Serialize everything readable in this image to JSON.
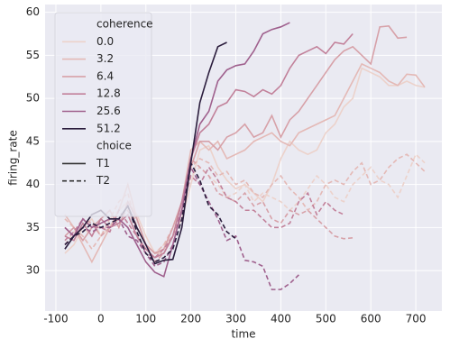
{
  "chart_data": {
    "type": "line",
    "xlabel": "time",
    "ylabel": "firing_rate",
    "xlim": [
      -124,
      758
    ],
    "ylim": [
      25.3,
      60.9
    ],
    "xticks": [
      -100,
      0,
      100,
      200,
      300,
      400,
      500,
      600,
      700
    ],
    "yticks": [
      30,
      35,
      40,
      45,
      50,
      55,
      60
    ],
    "grid": true,
    "legend_position": "upper-left",
    "legend": {
      "hue_title": "coherence",
      "hue_levels": [
        "0.0",
        "3.2",
        "6.4",
        "12.8",
        "25.6",
        "51.2"
      ],
      "hue_colors": [
        "#ecd2cb",
        "#e4b9b6",
        "#d7a1a8",
        "#c2819a",
        "#9f608d",
        "#2b1d3d"
      ],
      "style_title": "choice",
      "style_levels": [
        "T1",
        "T2"
      ],
      "style_dash": [
        "none",
        "5,3"
      ]
    },
    "x": [
      -80,
      -60,
      -40,
      -20,
      0,
      20,
      40,
      60,
      80,
      100,
      120,
      140,
      160,
      180,
      200,
      220,
      240,
      260,
      280,
      300,
      320,
      340,
      360,
      380,
      400,
      420,
      440,
      460,
      480,
      500,
      520,
      540,
      560,
      580,
      600,
      620,
      640,
      660,
      680,
      700,
      720
    ],
    "series": [
      {
        "hue": "0.0",
        "style": "T1",
        "values": [
          32,
          33,
          35,
          36,
          34,
          35,
          37,
          38,
          36.5,
          34,
          32,
          32.5,
          34,
          36,
          40,
          44,
          44.5,
          42,
          40.5,
          39.5,
          40,
          39,
          38,
          40,
          43,
          45,
          44,
          43.5,
          44,
          46,
          47,
          49,
          50,
          53.5,
          53,
          52.5,
          51.5,
          51.5,
          52,
          51.5,
          51.3
        ]
      },
      {
        "hue": "0.0",
        "style": "T2",
        "values": [
          33,
          34.5,
          35,
          34,
          35.5,
          36,
          37,
          38,
          36,
          33,
          32,
          33,
          34,
          37,
          41,
          42,
          41,
          40,
          38.5,
          39,
          40,
          38,
          39,
          38.5,
          38,
          37,
          38,
          39.5,
          41,
          40,
          38.5,
          38,
          40,
          41,
          42,
          40.5,
          40,
          38.5,
          41,
          43.5,
          42.5
        ]
      },
      {
        "hue": "3.2",
        "style": "T1",
        "values": [
          36.5,
          35,
          33,
          31,
          33,
          35,
          37,
          40,
          36,
          33,
          32,
          32,
          34,
          38,
          44,
          45,
          44,
          45,
          43,
          43.5,
          44,
          45,
          45.5,
          46,
          45,
          44.5,
          46,
          46.5,
          47,
          47.5,
          48,
          50,
          52,
          54,
          53.5,
          53,
          52,
          51.5,
          52.8,
          52.7,
          51.3
        ]
      },
      {
        "hue": "3.2",
        "style": "T2",
        "values": [
          36,
          35,
          34,
          32.5,
          34,
          36,
          38,
          39,
          35,
          33,
          32,
          33,
          35,
          38,
          42,
          43,
          42.5,
          41,
          41.5,
          40,
          40.5,
          39,
          38.5,
          40,
          41,
          39.5,
          38.5,
          37,
          38,
          40,
          40.5,
          40,
          41.5,
          42.5,
          40,
          40.5,
          42,
          43,
          43.5,
          42.5,
          41.5
        ]
      },
      {
        "hue": "6.4",
        "style": "T1",
        "values": [
          34,
          35,
          33.5,
          35,
          36,
          37,
          35,
          38,
          36,
          33,
          32,
          32.5,
          35,
          38,
          42,
          45,
          45,
          44,
          45.5,
          46,
          47,
          45.5,
          46,
          48,
          45.5,
          47.5,
          48.5,
          50,
          51.5,
          53,
          54.5,
          55.5,
          56,
          55,
          54,
          58.3,
          58.4,
          57,
          57.1,
          null,
          null
        ]
      },
      {
        "hue": "6.4",
        "style": "T2",
        "values": [
          35,
          34,
          36,
          35.5,
          34,
          35,
          36,
          37,
          35,
          33,
          31,
          32,
          34,
          38,
          43,
          42,
          41,
          39,
          38.5,
          38,
          39,
          37.5,
          38,
          36,
          35.5,
          37,
          36.5,
          37,
          36,
          35,
          34,
          33.7,
          33.8,
          null,
          null,
          null,
          null,
          null,
          null,
          null,
          null
        ]
      },
      {
        "hue": "12.8",
        "style": "T1",
        "values": [
          34,
          33.5,
          35.5,
          34,
          36,
          35,
          35.5,
          36.5,
          34,
          32.5,
          31.5,
          32,
          34,
          38,
          43,
          46,
          47,
          49,
          49.5,
          51,
          50.8,
          50.2,
          51,
          50.5,
          51.5,
          53.5,
          55,
          55.5,
          56,
          55.2,
          56.5,
          56.3,
          57.5,
          null,
          null,
          null,
          null,
          null,
          null,
          null,
          null
        ]
      },
      {
        "hue": "12.8",
        "style": "T2",
        "values": [
          33.5,
          34.5,
          36,
          35,
          35,
          34.5,
          37,
          35.5,
          34,
          32,
          31.5,
          32.5,
          34,
          37,
          41,
          40,
          42,
          40.5,
          38.5,
          38,
          37,
          37,
          36,
          35,
          35,
          35.5,
          38,
          39,
          36.5,
          38,
          37,
          36.5,
          null,
          null,
          null,
          null,
          null,
          null,
          null,
          null,
          null
        ]
      },
      {
        "hue": "25.6",
        "style": "T1",
        "values": [
          35,
          34,
          36,
          35,
          35.5,
          36,
          36,
          35,
          33,
          31,
          29.8,
          29.3,
          33,
          37,
          43,
          47,
          48.5,
          52,
          53.3,
          53.8,
          54,
          55.5,
          57.5,
          58,
          58.3,
          58.8,
          null,
          null,
          null,
          null,
          null,
          null,
          null,
          null,
          null,
          null,
          null,
          null,
          null,
          null,
          null
        ]
      },
      {
        "hue": "25.6",
        "style": "T2",
        "values": [
          33,
          34,
          35,
          34.5,
          35,
          35,
          36,
          34,
          33.5,
          32,
          30.5,
          31,
          33,
          37,
          42,
          40,
          38,
          36,
          33.5,
          34,
          31.2,
          31,
          30.5,
          27.8,
          27.8,
          28.5,
          29.5,
          null,
          null,
          null,
          null,
          null,
          null,
          null,
          null,
          null,
          null,
          null,
          null,
          null,
          null
        ]
      },
      {
        "hue": "51.2",
        "style": "T1",
        "values": [
          32.5,
          34,
          35,
          36.5,
          37,
          36,
          36,
          37.5,
          35,
          33,
          30.8,
          31.2,
          31.3,
          35,
          42.5,
          49.5,
          53,
          56,
          56.5,
          null,
          null,
          null,
          null,
          null,
          null,
          null,
          null,
          null,
          null,
          null,
          null,
          null,
          null,
          null,
          null,
          null,
          null,
          null,
          null,
          null,
          null
        ]
      },
      {
        "hue": "51.2",
        "style": "T2",
        "values": [
          33,
          34,
          34.5,
          35.5,
          35,
          35.5,
          36,
          37.5,
          34.5,
          32,
          31,
          31.5,
          32.5,
          36,
          42.5,
          40.5,
          37.5,
          36.5,
          34.5,
          33.7,
          null,
          null,
          null,
          null,
          null,
          null,
          null,
          null,
          null,
          null,
          null,
          null,
          null,
          null,
          null,
          null,
          null,
          null,
          null,
          null,
          null
        ]
      }
    ]
  }
}
